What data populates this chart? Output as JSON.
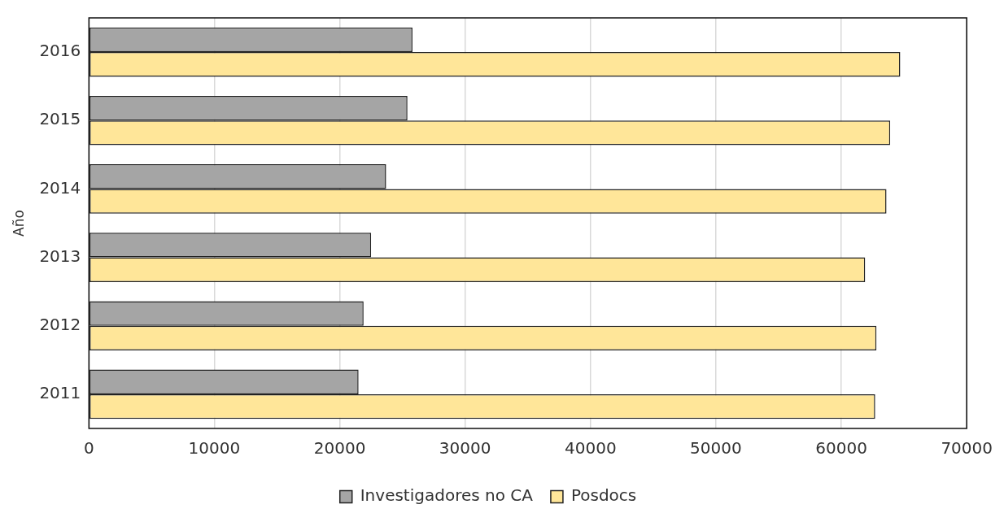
{
  "chart_data": {
    "type": "bar",
    "orientation": "horizontal",
    "ylabel": "Año",
    "categories": [
      "2016",
      "2015",
      "2014",
      "2013",
      "2012",
      "2011"
    ],
    "series": [
      {
        "name": "Investigadores no CA",
        "color": "#a5a5a5",
        "values": [
          25800,
          25400,
          23700,
          22500,
          21900,
          21500
        ]
      },
      {
        "name": "Posdocs",
        "color": "#ffe699",
        "values": [
          64700,
          63900,
          63600,
          61900,
          62800,
          62700
        ]
      }
    ],
    "xlim": [
      0,
      70000
    ],
    "xticks": [
      0,
      10000,
      20000,
      30000,
      40000,
      50000,
      60000,
      70000
    ],
    "grid": "x",
    "legend": "bottom"
  }
}
